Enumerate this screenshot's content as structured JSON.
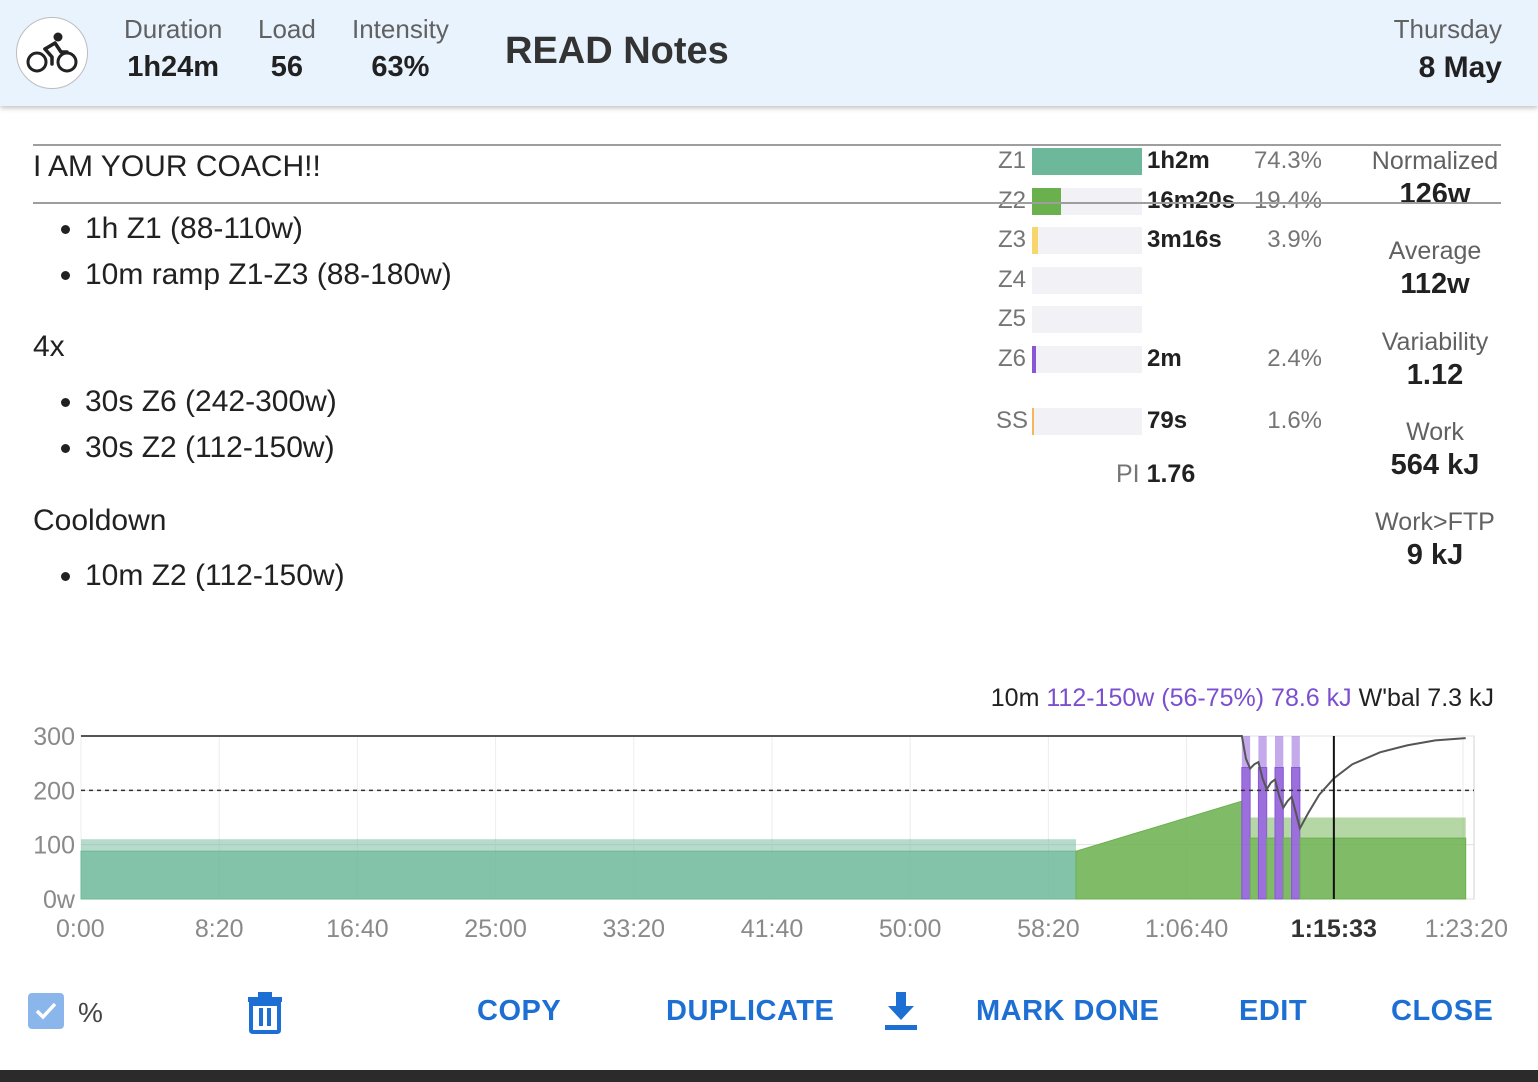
{
  "header": {
    "sport_icon": "bike-icon",
    "duration": {
      "label": "Duration",
      "value": "1h24m"
    },
    "load": {
      "label": "Load",
      "value": "56"
    },
    "intensity": {
      "label": "Intensity",
      "value": "63%"
    },
    "title": "READ Notes",
    "day_of_week": "Thursday",
    "date": "8 May"
  },
  "notes": {
    "heading": "I AM YOUR COACH!!",
    "block1": [
      "1h Z1 (88-110w)",
      "10m ramp Z1-Z3 (88-180w)"
    ],
    "repeat_label": "4x",
    "block2": [
      "30s Z6 (242-300w)",
      "30s Z2 (112-150w)"
    ],
    "cooldown_label": "Cooldown",
    "block3": [
      "10m Z2 (112-150w)"
    ]
  },
  "zones": [
    {
      "zone": "Z1",
      "time": "1h2m",
      "percent": "74.3%",
      "fraction": 1.0,
      "color": "#6db89a"
    },
    {
      "zone": "Z2",
      "time": "16m20s",
      "percent": "19.4%",
      "fraction": 0.26,
      "color": "#6ab04c"
    },
    {
      "zone": "Z3",
      "time": "3m16s",
      "percent": "3.9%",
      "fraction": 0.05,
      "color": "#f5d76e"
    },
    {
      "zone": "Z4",
      "time": "",
      "percent": "",
      "fraction": 0,
      "color": "#f0a030"
    },
    {
      "zone": "Z5",
      "time": "",
      "percent": "",
      "fraction": 0,
      "color": "#e05050"
    },
    {
      "zone": "Z6",
      "time": "2m",
      "percent": "2.4%",
      "fraction": 0.032,
      "color": "#8a56d6"
    },
    {
      "zone": "SS",
      "time": "79s",
      "percent": "1.6%",
      "fraction": 0.021,
      "color": "#f5b65a"
    }
  ],
  "pi": {
    "label": "PI",
    "value": "1.76"
  },
  "metrics": [
    {
      "label": "Normalized",
      "value": "126w"
    },
    {
      "label": "Average",
      "value": "112w"
    },
    {
      "label": "Variability",
      "value": "1.12"
    },
    {
      "label": "Work",
      "value": "564 kJ"
    },
    {
      "label": "Work>FTP",
      "value": "9 kJ"
    }
  ],
  "step_info": {
    "duration": "10m",
    "target": "112-150w (56-75%)",
    "energy": "78.6 kJ",
    "wbal": "W'bal 7.3 kJ",
    "target_color": "#7b4fcf"
  },
  "chart_data": {
    "type": "area",
    "x_ticks": [
      "0:00",
      "8:20",
      "16:40",
      "25:00",
      "33:20",
      "41:40",
      "50:00",
      "58:20",
      "1:06:40",
      "1:15:33",
      "1:23:20"
    ],
    "x_tick_seconds": [
      0,
      500,
      1000,
      1500,
      2000,
      2500,
      3000,
      3500,
      4000,
      4533,
      5000
    ],
    "y_ticks": [
      "300",
      "200",
      "100",
      "0w"
    ],
    "y_tick_values": [
      300,
      200,
      100,
      0
    ],
    "xlim": [
      0,
      5040
    ],
    "ylim": [
      0,
      300
    ],
    "ftp_line": 200,
    "cursor_x": 4533,
    "cursor_label": "1:15:33",
    "segments": [
      {
        "x0": 0,
        "x1": 3600,
        "low": 88,
        "high": 110,
        "zone": "Z1",
        "color": "#6db89a"
      },
      {
        "x0": 3600,
        "x1": 4200,
        "low_start": 88,
        "low_end": 180,
        "zone": "ramp",
        "color": "#6ab04c"
      },
      {
        "x0": 4200,
        "x1": 4230,
        "low": 242,
        "high": 300,
        "zone": "Z6",
        "color": "#8a56d6"
      },
      {
        "x0": 4230,
        "x1": 4260,
        "low": 112,
        "high": 150,
        "zone": "Z2",
        "color": "#6ab04c"
      },
      {
        "x0": 4260,
        "x1": 4290,
        "low": 242,
        "high": 300,
        "zone": "Z6",
        "color": "#8a56d6"
      },
      {
        "x0": 4290,
        "x1": 4320,
        "low": 112,
        "high": 150,
        "zone": "Z2",
        "color": "#6ab04c"
      },
      {
        "x0": 4320,
        "x1": 4350,
        "low": 242,
        "high": 300,
        "zone": "Z6",
        "color": "#8a56d6"
      },
      {
        "x0": 4350,
        "x1": 4380,
        "low": 112,
        "high": 150,
        "zone": "Z2",
        "color": "#6ab04c"
      },
      {
        "x0": 4380,
        "x1": 4410,
        "low": 242,
        "high": 300,
        "zone": "Z6",
        "color": "#8a56d6"
      },
      {
        "x0": 4410,
        "x1": 5010,
        "low": 112,
        "high": 150,
        "zone": "Z2",
        "color": "#6ab04c"
      }
    ],
    "wbal_line": [
      [
        0,
        300
      ],
      [
        4200,
        300
      ],
      [
        4215,
        258
      ],
      [
        4230,
        240
      ],
      [
        4245,
        248
      ],
      [
        4260,
        252
      ],
      [
        4275,
        222
      ],
      [
        4290,
        202
      ],
      [
        4305,
        214
      ],
      [
        4320,
        220
      ],
      [
        4335,
        190
      ],
      [
        4350,
        168
      ],
      [
        4365,
        180
      ],
      [
        4380,
        188
      ],
      [
        4395,
        160
      ],
      [
        4410,
        130
      ],
      [
        4440,
        158
      ],
      [
        4480,
        192
      ],
      [
        4533,
        222
      ],
      [
        4600,
        248
      ],
      [
        4700,
        270
      ],
      [
        4800,
        283
      ],
      [
        4900,
        292
      ],
      [
        5010,
        296
      ]
    ]
  },
  "footer": {
    "checkbox_label": "%",
    "copy": "COPY",
    "duplicate": "DUPLICATE",
    "mark_done": "MARK DONE",
    "edit": "EDIT",
    "close": "CLOSE"
  }
}
